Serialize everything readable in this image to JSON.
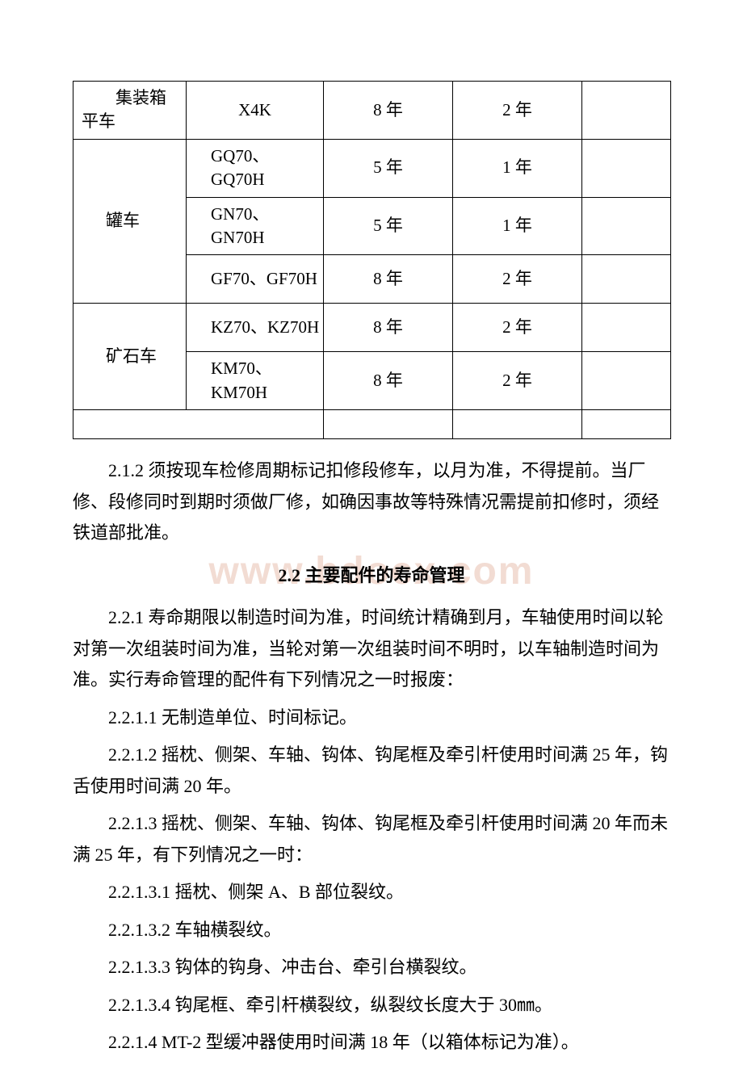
{
  "watermark": "www.bdocx.com",
  "table": {
    "rows": [
      {
        "category": "集装箱平车",
        "model": "X4K",
        "col3": "8 年",
        "col4": "2 年",
        "col5": "",
        "rowspan": 1,
        "catClass": "label-indent",
        "modelAlign": "center"
      },
      {
        "category": "罐车",
        "model": "GQ70、GQ70H",
        "col3": "5 年",
        "col4": "1 年",
        "col5": "",
        "rowspan": 3,
        "catClass": "label-cell",
        "modelAlign": "left"
      },
      {
        "category": "",
        "model": "GN70、GN70H",
        "col3": "5 年",
        "col4": "1 年",
        "col5": "",
        "rowspan": 0,
        "catClass": "",
        "modelAlign": "left"
      },
      {
        "category": "",
        "model": "GF70、GF70H",
        "col3": "8 年",
        "col4": "2 年",
        "col5": "",
        "rowspan": 0,
        "catClass": "",
        "modelAlign": "left"
      },
      {
        "category": "矿石车",
        "model": "KZ70、KZ70H",
        "col3": "8 年",
        "col4": "2 年",
        "col5": "",
        "rowspan": 2,
        "catClass": "label-cell",
        "modelAlign": "left"
      },
      {
        "category": "",
        "model": "KM70、KM70H",
        "col3": "8 年",
        "col4": "2 年",
        "col5": "",
        "rowspan": 0,
        "catClass": "",
        "modelAlign": "left"
      }
    ],
    "blankRow": true
  },
  "paragraphs": {
    "p1": "2.1.2 须按现车检修周期标记扣修段修车，以月为准，不得提前。当厂修、段修同时到期时须做厂修，如确因事故等特殊情况需提前扣修时，须经铁道部批准。",
    "h1": "2.2 主要配件的寿命管理",
    "p2": "2.2.1 寿命期限以制造时间为准，时间统计精确到月，车轴使用时间以轮对第一次组装时间为准，当轮对第一次组装时间不明时，以车轴制造时间为准。实行寿命管理的配件有下列情况之一时报废：",
    "p3": "2.2.1.1 无制造单位、时间标记。",
    "p4": "2.2.1.2 摇枕、侧架、车轴、钩体、钩尾框及牵引杆使用时间满 25 年，钩舌使用时间满 20 年。",
    "p5": "2.2.1.3 摇枕、侧架、车轴、钩体、钩尾框及牵引杆使用时间满 20 年而未满 25 年，有下列情况之一时：",
    "p6": "2.2.1.3.1 摇枕、侧架 A、B 部位裂纹。",
    "p7": "2.2.1.3.2 车轴横裂纹。",
    "p8": "2.2.1.3.3 钩体的钩身、冲击台、牵引台横裂纹。",
    "p9": "2.2.1.3.4 钩尾框、牵引杆横裂纹，纵裂纹长度大于 30㎜。",
    "p10": "2.2.1.4 MT-2 型缓冲器使用时间满 18 年（以箱体标记为准）。"
  }
}
